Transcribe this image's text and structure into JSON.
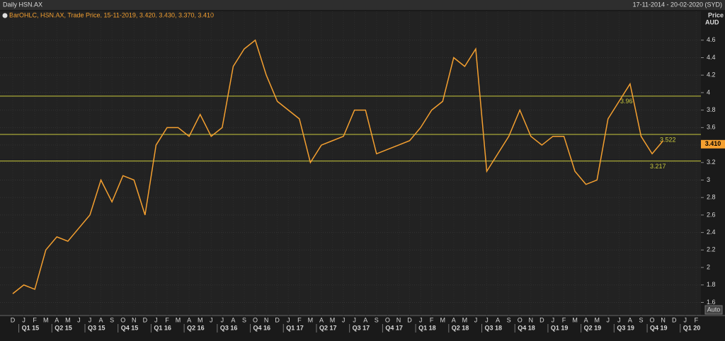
{
  "header": {
    "title": "Daily HSN.AX",
    "range": "17-11-2014 - 20-02-2020 (SYD)"
  },
  "chart_data": {
    "type": "line",
    "legend_text": "BarOHLC, HSN.AX, Trade Price, 15-11-2019, 3.420, 3.430, 3.370, 3.410",
    "y_label": [
      "Price",
      "AUD"
    ],
    "categories": [
      "D",
      "J",
      "F",
      "M",
      "A",
      "M",
      "J",
      "J",
      "A",
      "S",
      "O",
      "N",
      "D",
      "J",
      "F",
      "M",
      "A",
      "M",
      "J",
      "J",
      "A",
      "S",
      "O",
      "N",
      "D",
      "J",
      "F",
      "M",
      "A",
      "M",
      "J",
      "J",
      "A",
      "S",
      "O",
      "N",
      "D",
      "J",
      "F",
      "M",
      "A",
      "M",
      "J",
      "J",
      "A",
      "S",
      "O",
      "N",
      "D",
      "J",
      "F",
      "M",
      "A",
      "M",
      "J",
      "J",
      "A",
      "S",
      "O",
      "N",
      "D",
      "J",
      "F"
    ],
    "quarters": [
      "Q1 15",
      "Q2 15",
      "Q3 15",
      "Q4 15",
      "Q1 16",
      "Q2 16",
      "Q3 16",
      "Q4 16",
      "Q1 17",
      "Q2 17",
      "Q3 17",
      "Q4 17",
      "Q1 18",
      "Q2 18",
      "Q3 18",
      "Q4 18",
      "Q1 19",
      "Q2 19",
      "Q3 19",
      "Q4 19",
      "Q1 20"
    ],
    "series": [
      {
        "name": "HSN.AX",
        "color": "#f5a030",
        "values": [
          1.7,
          1.8,
          1.75,
          2.2,
          2.35,
          2.3,
          2.45,
          2.6,
          3.0,
          2.75,
          3.05,
          3.0,
          2.6,
          3.4,
          3.6,
          3.6,
          3.5,
          3.75,
          3.5,
          3.6,
          4.3,
          4.5,
          4.6,
          4.2,
          3.9,
          3.8,
          3.7,
          3.2,
          3.4,
          3.45,
          3.5,
          3.8,
          3.8,
          3.3,
          3.35,
          3.4,
          3.45,
          3.6,
          3.8,
          3.9,
          4.4,
          4.3,
          4.5,
          3.1,
          3.3,
          3.5,
          3.8,
          3.5,
          3.4,
          3.5,
          3.5,
          3.1,
          2.95,
          3.0,
          3.7,
          3.9,
          4.1,
          3.5,
          3.3,
          3.45,
          null,
          null,
          null
        ]
      }
    ],
    "hlines": [
      3.96,
      3.522,
      3.217
    ],
    "hline_color": "#c8c83c",
    "last_price": {
      "value": 3.41,
      "label": "3.410"
    },
    "ylim": [
      1.45,
      4.93
    ],
    "yticks": [
      1.6,
      1.8,
      2,
      2.2,
      2.4,
      2.6,
      2.8,
      3,
      3.2,
      3.4,
      3.6,
      3.8,
      4,
      4.2,
      4.4,
      4.6
    ],
    "grid": true,
    "auto_button": "Auto"
  }
}
